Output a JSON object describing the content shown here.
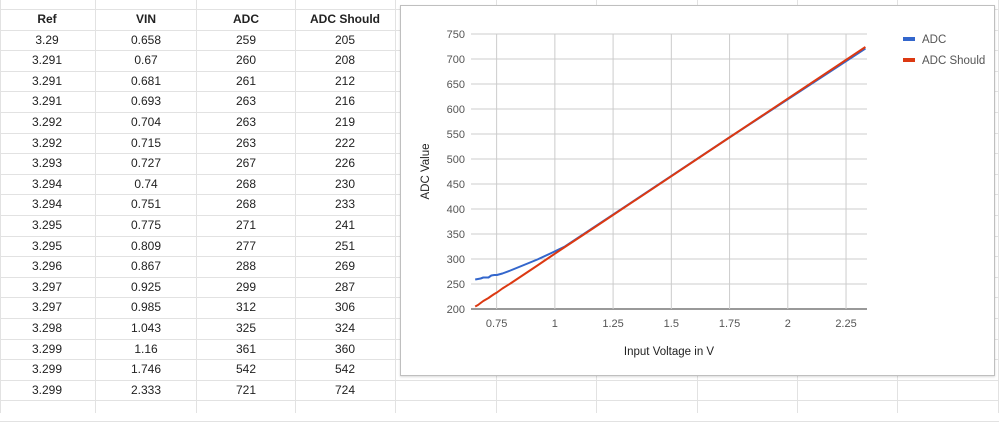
{
  "sheet": {
    "headers": [
      "Ref",
      "VIN",
      "ADC",
      "ADC Should"
    ],
    "rows": [
      [
        "3.29",
        "0.658",
        "259",
        "205"
      ],
      [
        "3.291",
        "0.67",
        "260",
        "208"
      ],
      [
        "3.291",
        "0.681",
        "261",
        "212"
      ],
      [
        "3.291",
        "0.693",
        "263",
        "216"
      ],
      [
        "3.292",
        "0.704",
        "263",
        "219"
      ],
      [
        "3.292",
        "0.715",
        "263",
        "222"
      ],
      [
        "3.293",
        "0.727",
        "267",
        "226"
      ],
      [
        "3.294",
        "0.74",
        "268",
        "230"
      ],
      [
        "3.294",
        "0.751",
        "268",
        "233"
      ],
      [
        "3.295",
        "0.775",
        "271",
        "241"
      ],
      [
        "3.295",
        "0.809",
        "277",
        "251"
      ],
      [
        "3.296",
        "0.867",
        "288",
        "269"
      ],
      [
        "3.297",
        "0.925",
        "299",
        "287"
      ],
      [
        "3.297",
        "0.985",
        "312",
        "306"
      ],
      [
        "3.298",
        "1.043",
        "325",
        "324"
      ],
      [
        "3.299",
        "1.16",
        "361",
        "360"
      ],
      [
        "3.299",
        "1.746",
        "542",
        "542"
      ],
      [
        "3.299",
        "2.333",
        "721",
        "724"
      ]
    ]
  },
  "chart_data": {
    "type": "line",
    "title": "",
    "xlabel": "Input Voltage in V",
    "ylabel": "ADC Value",
    "x": [
      0.658,
      0.67,
      0.681,
      0.693,
      0.704,
      0.715,
      0.727,
      0.74,
      0.751,
      0.775,
      0.809,
      0.867,
      0.925,
      0.985,
      1.043,
      1.16,
      1.746,
      2.333
    ],
    "series": [
      {
        "name": "ADC",
        "color": "#3366cc",
        "values": [
          259,
          260,
          261,
          263,
          263,
          263,
          267,
          268,
          268,
          271,
          277,
          288,
          299,
          312,
          325,
          361,
          542,
          721
        ]
      },
      {
        "name": "ADC Should",
        "color": "#dc3912",
        "values": [
          205,
          208,
          212,
          216,
          219,
          222,
          226,
          230,
          233,
          241,
          251,
          269,
          287,
          306,
          324,
          360,
          542,
          724
        ]
      }
    ],
    "xlim": [
      0.64,
      2.34
    ],
    "ylim": [
      200,
      750
    ],
    "xticks": [
      "0.75",
      "1",
      "1.25",
      "1.5",
      "1.75",
      "2",
      "2.25"
    ],
    "yticks": [
      "200",
      "250",
      "300",
      "350",
      "400",
      "450",
      "500",
      "550",
      "600",
      "650",
      "700",
      "750"
    ],
    "grid": true,
    "legend_position": "right"
  }
}
